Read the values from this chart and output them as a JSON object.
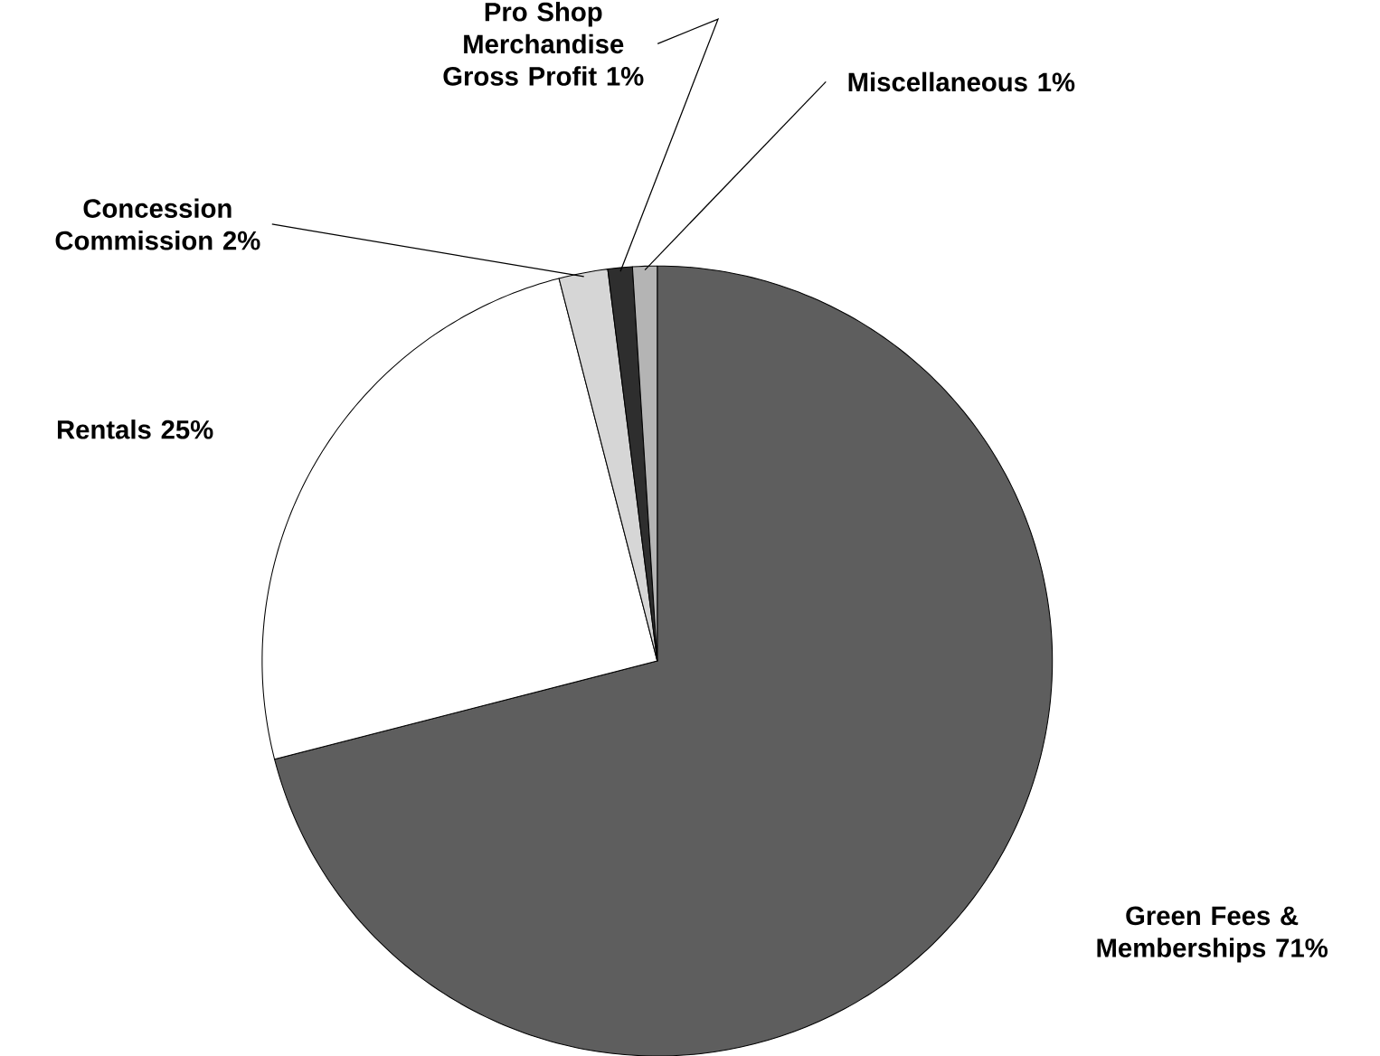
{
  "chart_data": {
    "type": "pie",
    "categories": [
      "Green Fees & Memberships",
      "Rentals",
      "Concession Commission",
      "Pro Shop Merchandise Gross Profit",
      "Miscellaneous"
    ],
    "values": [
      71,
      25,
      2,
      1,
      1
    ],
    "value_labels": [
      "71%",
      "25%",
      "2%",
      "1%",
      "1%"
    ],
    "colors": [
      "#5e5e5e",
      "#ffffff",
      "#d6d6d6",
      "#2e2e2e",
      "#b4b4b4"
    ]
  }
}
